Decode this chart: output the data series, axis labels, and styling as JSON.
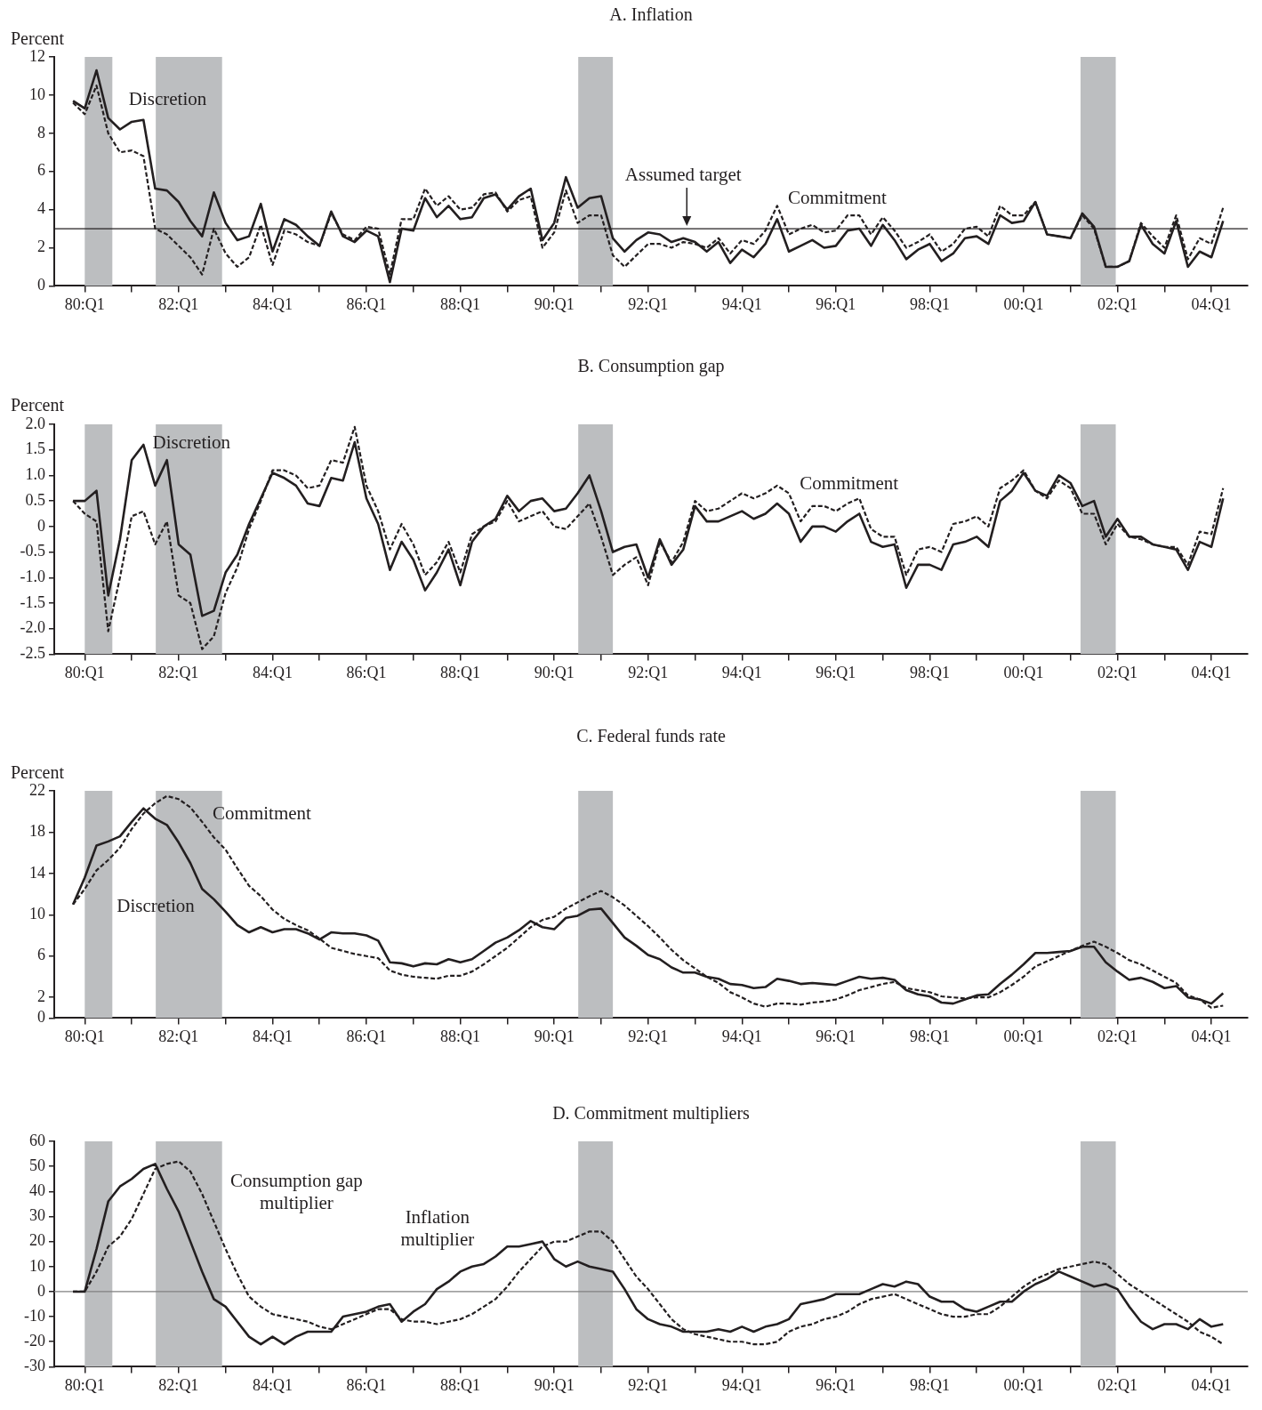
{
  "chart_data": [
    {
      "type": "line",
      "title": "A. Inflation",
      "ylabel": "Percent",
      "categories": [
        null,
        "80:Q1",
        null,
        null,
        null,
        null,
        null,
        null,
        null,
        "82:Q1",
        null,
        null,
        null,
        null,
        null,
        null,
        null,
        "84:Q1",
        null,
        null,
        null,
        null,
        null,
        null,
        null,
        "86:Q1",
        null,
        null,
        null,
        null,
        null,
        null,
        null,
        "88:Q1",
        null,
        null,
        null,
        null,
        null,
        null,
        null,
        "90:Q1",
        null,
        null,
        null,
        null,
        null,
        null,
        null,
        "92:Q1",
        null,
        null,
        null,
        null,
        null,
        null,
        null,
        "94:Q1",
        null,
        null,
        null,
        null,
        null,
        null,
        null,
        "96:Q1",
        null,
        null,
        null,
        null,
        null,
        null,
        null,
        "98:Q1",
        null,
        null,
        null,
        null,
        null,
        null,
        null,
        "00:Q1",
        null,
        null,
        null,
        null,
        null,
        null,
        null,
        "02:Q1",
        null,
        null,
        null,
        null,
        null,
        null,
        null,
        "04:Q1",
        null
      ],
      "series": [
        {
          "name": "Discretion",
          "color": "#231f20",
          "line_style": "solid",
          "values": [
            9.7,
            9.3,
            11.3,
            8.8,
            8.2,
            8.6,
            8.7,
            5.1,
            5.0,
            4.4,
            3.4,
            2.6,
            4.9,
            3.3,
            2.4,
            2.6,
            4.3,
            1.8,
            3.5,
            3.2,
            2.6,
            2.1,
            3.9,
            2.6,
            2.3,
            2.9,
            2.6,
            0.2,
            3.0,
            2.9,
            4.6,
            3.6,
            4.2,
            3.5,
            3.6,
            4.6,
            4.8,
            4.0,
            4.7,
            5.1,
            2.4,
            3.3,
            5.7,
            4.1,
            4.6,
            4.7,
            2.5,
            1.8,
            2.4,
            2.8,
            2.7,
            2.3,
            2.5,
            2.3,
            1.8,
            2.3,
            1.2,
            1.9,
            1.5,
            2.2,
            3.5,
            1.8,
            2.1,
            2.4,
            2.0,
            2.1,
            2.9,
            3.0,
            2.1,
            3.2,
            2.4,
            1.4,
            1.9,
            2.2,
            1.3,
            1.7,
            2.5,
            2.6,
            2.2,
            3.7,
            3.3,
            3.4,
            4.4,
            2.7,
            2.6,
            2.5,
            3.8,
            3.1,
            1.0,
            1.0,
            1.3,
            3.2,
            2.2,
            1.7,
            3.4,
            1.0,
            1.8,
            1.5,
            3.4
          ]
        },
        {
          "name": "Commitment",
          "color": "#231f20",
          "line_style": "dashed",
          "values": [
            9.6,
            9.0,
            10.5,
            8.0,
            7.0,
            7.1,
            6.8,
            3.0,
            2.7,
            2.1,
            1.5,
            0.6,
            3.0,
            1.7,
            1.0,
            1.5,
            3.2,
            1.1,
            2.9,
            2.7,
            2.3,
            2.1,
            3.8,
            2.7,
            2.4,
            3.1,
            3.0,
            0.6,
            3.5,
            3.5,
            5.1,
            4.2,
            4.7,
            4.0,
            4.1,
            4.8,
            4.9,
            3.9,
            4.5,
            4.7,
            2.0,
            2.8,
            5.0,
            3.3,
            3.7,
            3.7,
            1.6,
            1.0,
            1.6,
            2.2,
            2.2,
            2.0,
            2.3,
            2.2,
            2.0,
            2.5,
            1.7,
            2.4,
            2.2,
            2.9,
            4.2,
            2.7,
            3.0,
            3.2,
            2.8,
            2.9,
            3.7,
            3.7,
            2.7,
            3.6,
            2.9,
            2.0,
            2.3,
            2.7,
            1.8,
            2.2,
            3.0,
            3.1,
            2.6,
            4.2,
            3.7,
            3.7,
            4.4,
            2.7,
            2.6,
            2.5,
            3.7,
            3.0,
            1.0,
            1.0,
            1.3,
            3.3,
            2.6,
            2.0,
            3.7,
            1.4,
            2.5,
            2.2,
            4.1
          ]
        }
      ],
      "ylim": [
        0,
        12
      ],
      "yticks": [
        0,
        2,
        4,
        6,
        8,
        10,
        12
      ],
      "ref_lines": [
        {
          "axis": "y",
          "value": 3,
          "label": "Assumed target",
          "color": "#231f20"
        }
      ]
    },
    {
      "type": "line",
      "title": "B. Consumption gap",
      "ylabel": "Percent",
      "categories": [
        null,
        "80:Q1",
        null,
        null,
        null,
        null,
        null,
        null,
        null,
        "82:Q1",
        null,
        null,
        null,
        null,
        null,
        null,
        null,
        "84:Q1",
        null,
        null,
        null,
        null,
        null,
        null,
        null,
        "86:Q1",
        null,
        null,
        null,
        null,
        null,
        null,
        null,
        "88:Q1",
        null,
        null,
        null,
        null,
        null,
        null,
        null,
        "90:Q1",
        null,
        null,
        null,
        null,
        null,
        null,
        null,
        "92:Q1",
        null,
        null,
        null,
        null,
        null,
        null,
        null,
        "94:Q1",
        null,
        null,
        null,
        null,
        null,
        null,
        null,
        "96:Q1",
        null,
        null,
        null,
        null,
        null,
        null,
        null,
        "98:Q1",
        null,
        null,
        null,
        null,
        null,
        null,
        null,
        "00:Q1",
        null,
        null,
        null,
        null,
        null,
        null,
        null,
        "02:Q1",
        null,
        null,
        null,
        null,
        null,
        null,
        null,
        "04:Q1",
        null
      ],
      "series": [
        {
          "name": "Discretion",
          "color": "#231f20",
          "line_style": "solid",
          "values": [
            0.5,
            0.5,
            0.7,
            -1.35,
            -0.25,
            1.3,
            1.6,
            0.8,
            1.3,
            -0.35,
            -0.55,
            -1.75,
            -1.65,
            -0.9,
            -0.55,
            0.05,
            0.55,
            1.05,
            0.95,
            0.8,
            0.45,
            0.4,
            0.95,
            0.9,
            1.65,
            0.55,
            0.05,
            -0.85,
            -0.3,
            -0.65,
            -1.25,
            -0.9,
            -0.45,
            -1.15,
            -0.3,
            0.0,
            0.15,
            0.6,
            0.3,
            0.5,
            0.55,
            0.3,
            0.35,
            0.65,
            1.0,
            0.3,
            -0.5,
            -0.4,
            -0.35,
            -1.0,
            -0.25,
            -0.75,
            -0.45,
            0.4,
            0.1,
            0.1,
            0.2,
            0.3,
            0.15,
            0.25,
            0.45,
            0.25,
            -0.3,
            0.0,
            0.0,
            -0.1,
            0.1,
            0.25,
            -0.3,
            -0.4,
            -0.35,
            -1.2,
            -0.75,
            -0.75,
            -0.85,
            -0.35,
            -0.3,
            -0.2,
            -0.4,
            0.5,
            0.7,
            1.05,
            0.7,
            0.6,
            1.0,
            0.85,
            0.4,
            0.5,
            -0.2,
            0.15,
            -0.2,
            -0.2,
            -0.35,
            -0.4,
            -0.45,
            -0.85,
            -0.3,
            -0.4,
            0.55
          ]
        },
        {
          "name": "Commitment",
          "color": "#231f20",
          "line_style": "dashed",
          "values": [
            0.5,
            0.25,
            0.1,
            -2.05,
            -1.0,
            0.2,
            0.3,
            -0.35,
            0.1,
            -1.35,
            -1.5,
            -2.4,
            -2.15,
            -1.3,
            -0.8,
            -0.05,
            0.5,
            1.1,
            1.1,
            1.0,
            0.75,
            0.8,
            1.3,
            1.25,
            1.95,
            0.8,
            0.3,
            -0.45,
            0.05,
            -0.35,
            -0.95,
            -0.7,
            -0.3,
            -0.9,
            -0.15,
            0.0,
            0.1,
            0.5,
            0.1,
            0.2,
            0.3,
            0.0,
            -0.05,
            0.2,
            0.45,
            -0.2,
            -0.95,
            -0.75,
            -0.6,
            -1.15,
            -0.3,
            -0.7,
            -0.3,
            0.5,
            0.3,
            0.35,
            0.5,
            0.65,
            0.55,
            0.65,
            0.8,
            0.65,
            0.1,
            0.4,
            0.4,
            0.3,
            0.45,
            0.55,
            -0.05,
            -0.2,
            -0.2,
            -0.95,
            -0.45,
            -0.4,
            -0.5,
            0.05,
            0.1,
            0.2,
            0.0,
            0.75,
            0.9,
            1.1,
            0.7,
            0.55,
            0.9,
            0.75,
            0.25,
            0.25,
            -0.35,
            0.05,
            -0.2,
            -0.25,
            -0.35,
            -0.4,
            -0.4,
            -0.75,
            -0.1,
            -0.15,
            0.75
          ]
        }
      ],
      "ylim": [
        -2.5,
        2
      ],
      "yticks": [
        {
          "value": -2.5,
          "label": "-2.5"
        },
        {
          "value": -2,
          "label": "-2.0"
        },
        {
          "value": -1.5,
          "label": "-1.5"
        },
        {
          "value": -1,
          "label": "-1.0"
        },
        {
          "value": -0.5,
          "label": "-0.5"
        },
        0,
        {
          "value": 0.5,
          "label": "0.5"
        },
        {
          "value": 1,
          "label": "1.0"
        },
        {
          "value": 1.5,
          "label": "1.5"
        },
        {
          "value": 2,
          "label": "2.0"
        }
      ]
    },
    {
      "type": "line",
      "title": "C. Federal funds rate",
      "ylabel": "Percent",
      "categories": [
        null,
        "80:Q1",
        null,
        null,
        null,
        null,
        null,
        null,
        null,
        "82:Q1",
        null,
        null,
        null,
        null,
        null,
        null,
        null,
        "84:Q1",
        null,
        null,
        null,
        null,
        null,
        null,
        null,
        "86:Q1",
        null,
        null,
        null,
        null,
        null,
        null,
        null,
        "88:Q1",
        null,
        null,
        null,
        null,
        null,
        null,
        null,
        "90:Q1",
        null,
        null,
        null,
        null,
        null,
        null,
        null,
        "92:Q1",
        null,
        null,
        null,
        null,
        null,
        null,
        null,
        "94:Q1",
        null,
        null,
        null,
        null,
        null,
        null,
        null,
        "96:Q1",
        null,
        null,
        null,
        null,
        null,
        null,
        null,
        "98:Q1",
        null,
        null,
        null,
        null,
        null,
        null,
        null,
        "00:Q1",
        null,
        null,
        null,
        null,
        null,
        null,
        null,
        "02:Q1",
        null,
        null,
        null,
        null,
        null,
        null,
        null,
        "04:Q1",
        null
      ],
      "series": [
        {
          "name": "Discretion",
          "color": "#231f20",
          "line_style": "solid",
          "values": [
            11.0,
            13.6,
            16.7,
            17.1,
            17.6,
            19.0,
            20.3,
            19.3,
            18.7,
            17.0,
            15.0,
            12.5,
            11.5,
            10.3,
            9.0,
            8.3,
            8.8,
            8.3,
            8.6,
            8.6,
            8.2,
            7.6,
            8.3,
            8.2,
            8.2,
            8.0,
            7.5,
            5.4,
            5.3,
            5.0,
            5.3,
            5.2,
            5.7,
            5.4,
            5.7,
            6.5,
            7.3,
            7.8,
            8.5,
            9.4,
            8.8,
            8.6,
            9.7,
            9.9,
            10.5,
            10.6,
            9.2,
            7.8,
            7.0,
            6.1,
            5.7,
            4.9,
            4.4,
            4.4,
            4.0,
            3.8,
            3.3,
            3.2,
            2.9,
            3.0,
            3.8,
            3.6,
            3.3,
            3.4,
            3.3,
            3.2,
            3.6,
            4.0,
            3.8,
            3.9,
            3.7,
            2.7,
            2.3,
            2.1,
            1.5,
            1.4,
            1.8,
            2.2,
            2.3,
            3.3,
            4.2,
            5.2,
            6.3,
            6.3,
            6.4,
            6.5,
            6.9,
            6.9,
            5.4,
            4.5,
            3.7,
            3.9,
            3.5,
            2.9,
            3.1,
            2.0,
            1.8,
            1.4,
            2.4
          ]
        },
        {
          "name": "Commitment",
          "color": "#231f20",
          "line_style": "dashed",
          "values": [
            11.0,
            12.5,
            14.3,
            15.3,
            16.5,
            18.3,
            19.8,
            20.8,
            21.5,
            21.2,
            20.4,
            19.0,
            17.5,
            16.3,
            14.5,
            12.8,
            11.8,
            10.5,
            9.6,
            9.0,
            8.5,
            7.7,
            6.8,
            6.5,
            6.2,
            6.0,
            5.8,
            4.6,
            4.2,
            4.0,
            3.9,
            3.8,
            4.1,
            4.1,
            4.5,
            5.2,
            6.0,
            6.8,
            7.8,
            8.8,
            9.5,
            9.8,
            10.6,
            11.2,
            11.8,
            12.3,
            11.7,
            10.9,
            9.9,
            8.9,
            7.8,
            6.6,
            5.6,
            4.8,
            4.0,
            3.4,
            2.5,
            2.0,
            1.4,
            1.1,
            1.4,
            1.4,
            1.3,
            1.5,
            1.6,
            1.8,
            2.2,
            2.7,
            3.0,
            3.3,
            3.5,
            2.9,
            2.7,
            2.5,
            2.1,
            2.0,
            1.9,
            2.0,
            2.0,
            2.5,
            3.2,
            4.0,
            5.0,
            5.5,
            6.0,
            6.5,
            7.0,
            7.4,
            6.9,
            6.3,
            5.6,
            5.2,
            4.6,
            4.0,
            3.4,
            2.2,
            1.8,
            1.0,
            1.2
          ]
        }
      ],
      "ylim": [
        0,
        22
      ],
      "yticks": [
        0,
        2,
        6,
        10,
        14,
        18,
        22
      ]
    },
    {
      "type": "line",
      "title": "D. Commitment multipliers",
      "categories": [
        null,
        "80:Q1",
        null,
        null,
        null,
        null,
        null,
        null,
        null,
        "82:Q1",
        null,
        null,
        null,
        null,
        null,
        null,
        null,
        "84:Q1",
        null,
        null,
        null,
        null,
        null,
        null,
        null,
        "86:Q1",
        null,
        null,
        null,
        null,
        null,
        null,
        null,
        "88:Q1",
        null,
        null,
        null,
        null,
        null,
        null,
        null,
        "90:Q1",
        null,
        null,
        null,
        null,
        null,
        null,
        null,
        "92:Q1",
        null,
        null,
        null,
        null,
        null,
        null,
        null,
        "94:Q1",
        null,
        null,
        null,
        null,
        null,
        null,
        null,
        "96:Q1",
        null,
        null,
        null,
        null,
        null,
        null,
        null,
        "98:Q1",
        null,
        null,
        null,
        null,
        null,
        null,
        null,
        "00:Q1",
        null,
        null,
        null,
        null,
        null,
        null,
        null,
        "02:Q1",
        null,
        null,
        null,
        null,
        null,
        null,
        null,
        "04:Q1",
        null
      ],
      "series": [
        {
          "name": "Inflation multiplier",
          "color": "#231f20",
          "line_style": "solid",
          "values": [
            0,
            0,
            17,
            36,
            42,
            45,
            49,
            51,
            41,
            32,
            20,
            8,
            -3,
            -6,
            -12,
            -18,
            -21,
            -18,
            -21,
            -18,
            -16,
            -16,
            -16,
            -10,
            -9,
            -8,
            -6,
            -5,
            -12,
            -8,
            -5,
            1,
            4,
            8,
            10,
            11,
            14,
            18,
            18,
            19,
            20,
            13,
            10,
            12,
            10,
            9,
            8,
            1,
            -7,
            -11,
            -13,
            -14,
            -16,
            -16,
            -16,
            -15,
            -16,
            -14,
            -16,
            -14,
            -13,
            -11,
            -5,
            -4,
            -3,
            -1,
            -1,
            -1,
            1,
            3,
            2,
            4,
            3,
            -2,
            -4,
            -4,
            -7,
            -8,
            -6,
            -4,
            -4,
            0,
            3,
            5,
            8,
            6,
            4,
            2,
            3,
            1,
            -6,
            -12,
            -15,
            -13,
            -13,
            -15,
            -11,
            -14,
            -13
          ]
        },
        {
          "name": "Consumption gap multiplier",
          "color": "#231f20",
          "line_style": "dashed",
          "values": [
            0,
            0,
            8,
            18,
            22,
            29,
            39,
            49,
            51,
            52,
            48,
            39,
            28,
            17,
            7,
            -2,
            -6,
            -9,
            -10,
            -11,
            -12,
            -14,
            -15,
            -13,
            -11,
            -9,
            -7,
            -7,
            -11,
            -12,
            -12,
            -13,
            -12,
            -11,
            -9,
            -6,
            -3,
            2,
            8,
            13,
            18,
            20,
            20,
            22,
            24,
            24,
            20,
            13,
            6,
            1,
            -5,
            -11,
            -15,
            -17,
            -18,
            -19,
            -20,
            -20,
            -21,
            -21,
            -20,
            -16,
            -14,
            -13,
            -11,
            -10,
            -8,
            -5,
            -3,
            -2,
            -1,
            -3,
            -5,
            -7,
            -9,
            -10,
            -10,
            -9,
            -9,
            -6,
            -2,
            2,
            5,
            7,
            9,
            10,
            11,
            12,
            11,
            7,
            3,
            0,
            -3,
            -6,
            -9,
            -12,
            -16,
            -18,
            -21
          ]
        }
      ],
      "ylim": [
        -30,
        60
      ],
      "yticks": [
        -30,
        -20,
        -10,
        0,
        10,
        20,
        30,
        40,
        50,
        60
      ],
      "ref_lines": [
        {
          "axis": "y",
          "value": 0,
          "color": "#808080"
        }
      ]
    }
  ]
}
